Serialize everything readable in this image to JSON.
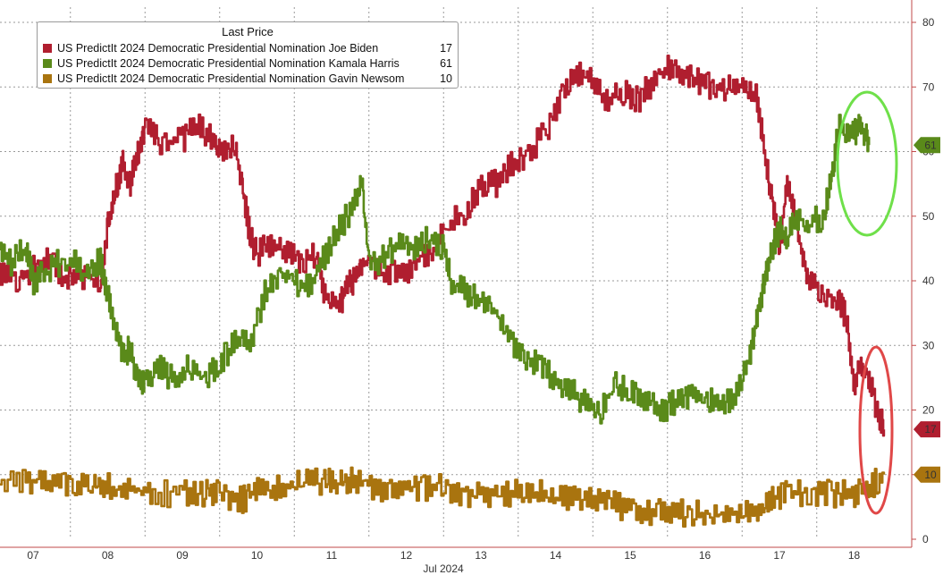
{
  "chart_data": {
    "type": "line",
    "legend_title": "Last Price",
    "xlabel": "Jul 2024",
    "x_categories": [
      "07",
      "08",
      "09",
      "10",
      "11",
      "12",
      "13",
      "14",
      "15",
      "16",
      "17",
      "18"
    ],
    "ylim": [
      0,
      80
    ],
    "y_ticks": [
      "0",
      "10",
      "20",
      "30",
      "40",
      "50",
      "60",
      "70",
      "80"
    ],
    "grid": true,
    "legend_position": "top-left",
    "series": [
      {
        "name": "US PredictIt 2024 Democratic Presidential Nomination Joe Biden",
        "last": "17",
        "color": "#b01e2f",
        "points": [
          [
            6.5,
            41
          ],
          [
            6.8,
            40
          ],
          [
            7.0,
            42
          ],
          [
            7.2,
            44
          ],
          [
            7.4,
            40
          ],
          [
            7.6,
            41
          ],
          [
            7.9,
            40
          ],
          [
            8.0,
            49
          ],
          [
            8.1,
            54
          ],
          [
            8.2,
            58
          ],
          [
            8.3,
            55
          ],
          [
            8.4,
            60
          ],
          [
            8.5,
            64
          ],
          [
            8.7,
            61
          ],
          [
            9.0,
            62
          ],
          [
            9.2,
            64
          ],
          [
            9.4,
            62
          ],
          [
            9.5,
            60
          ],
          [
            9.7,
            61
          ],
          [
            9.8,
            55
          ],
          [
            9.9,
            47
          ],
          [
            10.0,
            44
          ],
          [
            10.2,
            46
          ],
          [
            10.4,
            44
          ],
          [
            10.6,
            43
          ],
          [
            10.8,
            44
          ],
          [
            10.9,
            38
          ],
          [
            11.1,
            36
          ],
          [
            11.2,
            39
          ],
          [
            11.3,
            40
          ],
          [
            11.4,
            42
          ],
          [
            11.5,
            43
          ],
          [
            11.7,
            41
          ],
          [
            12.0,
            41
          ],
          [
            12.2,
            44
          ],
          [
            12.4,
            45
          ],
          [
            12.5,
            48
          ],
          [
            12.8,
            51
          ],
          [
            13.0,
            55
          ],
          [
            13.2,
            55
          ],
          [
            13.4,
            58
          ],
          [
            13.6,
            59
          ],
          [
            13.9,
            64
          ],
          [
            14.1,
            69
          ],
          [
            14.3,
            72
          ],
          [
            14.5,
            71
          ],
          [
            14.7,
            68
          ],
          [
            14.9,
            69
          ],
          [
            15.1,
            68
          ],
          [
            15.3,
            71
          ],
          [
            15.5,
            73
          ],
          [
            15.7,
            72
          ],
          [
            15.9,
            71
          ],
          [
            16.1,
            70
          ],
          [
            16.3,
            70
          ],
          [
            16.5,
            70
          ],
          [
            16.7,
            68
          ],
          [
            16.8,
            60
          ],
          [
            16.9,
            52
          ],
          [
            17.0,
            45
          ],
          [
            17.1,
            55
          ],
          [
            17.2,
            50
          ],
          [
            17.3,
            44
          ],
          [
            17.4,
            40
          ],
          [
            17.6,
            38
          ],
          [
            17.8,
            37
          ],
          [
            17.9,
            34
          ],
          [
            18.0,
            24
          ],
          [
            18.1,
            27
          ],
          [
            18.2,
            25
          ],
          [
            18.3,
            20
          ],
          [
            18.4,
            17
          ]
        ]
      },
      {
        "name": "US PredictIt 2024 Democratic Presidential Nomination Kamala Harris",
        "last": "61",
        "color": "#5a8a1a",
        "points": [
          [
            6.5,
            44
          ],
          [
            6.7,
            43
          ],
          [
            6.9,
            45
          ],
          [
            7.0,
            40
          ],
          [
            7.2,
            42
          ],
          [
            7.4,
            43
          ],
          [
            7.7,
            42
          ],
          [
            7.9,
            43
          ],
          [
            8.0,
            38
          ],
          [
            8.1,
            33
          ],
          [
            8.2,
            28
          ],
          [
            8.3,
            30
          ],
          [
            8.4,
            24
          ],
          [
            8.5,
            25
          ],
          [
            8.7,
            27
          ],
          [
            8.9,
            24
          ],
          [
            9.1,
            27
          ],
          [
            9.3,
            25
          ],
          [
            9.5,
            27
          ],
          [
            9.7,
            31
          ],
          [
            9.9,
            30
          ],
          [
            10.1,
            38
          ],
          [
            10.3,
            41
          ],
          [
            10.5,
            40
          ],
          [
            10.7,
            39
          ],
          [
            10.9,
            44
          ],
          [
            11.1,
            48
          ],
          [
            11.3,
            52
          ],
          [
            11.4,
            55
          ],
          [
            11.5,
            42
          ],
          [
            11.7,
            44
          ],
          [
            11.9,
            46
          ],
          [
            12.1,
            45
          ],
          [
            12.3,
            47
          ],
          [
            12.5,
            45
          ],
          [
            12.6,
            40
          ],
          [
            12.8,
            38
          ],
          [
            13.0,
            37
          ],
          [
            13.2,
            35
          ],
          [
            13.4,
            30
          ],
          [
            13.6,
            28
          ],
          [
            13.8,
            27
          ],
          [
            14.0,
            24
          ],
          [
            14.2,
            23
          ],
          [
            14.4,
            21
          ],
          [
            14.6,
            20
          ],
          [
            14.8,
            24
          ],
          [
            15.0,
            23
          ],
          [
            15.2,
            22
          ],
          [
            15.4,
            20
          ],
          [
            15.6,
            21
          ],
          [
            15.8,
            22
          ],
          [
            16.0,
            22
          ],
          [
            16.2,
            21
          ],
          [
            16.4,
            22
          ],
          [
            16.6,
            28
          ],
          [
            16.7,
            35
          ],
          [
            16.8,
            40
          ],
          [
            16.9,
            45
          ],
          [
            17.0,
            48
          ],
          [
            17.1,
            46
          ],
          [
            17.2,
            50
          ],
          [
            17.4,
            49
          ],
          [
            17.6,
            50
          ],
          [
            17.7,
            57
          ],
          [
            17.8,
            64
          ],
          [
            18.0,
            63
          ],
          [
            18.1,
            64
          ],
          [
            18.2,
            61
          ]
        ]
      },
      {
        "name": "US PredictIt 2024 Democratic Presidential Nomination Gavin Newsom",
        "last": "10",
        "color": "#a9740f",
        "points": [
          [
            6.5,
            9
          ],
          [
            6.9,
            9
          ],
          [
            7.2,
            9
          ],
          [
            7.5,
            8
          ],
          [
            7.8,
            9
          ],
          [
            8.0,
            8
          ],
          [
            8.3,
            8
          ],
          [
            8.6,
            7
          ],
          [
            9.0,
            7
          ],
          [
            9.3,
            7
          ],
          [
            9.5,
            7
          ],
          [
            9.8,
            6
          ],
          [
            10.0,
            8
          ],
          [
            10.3,
            8
          ],
          [
            10.6,
            9
          ],
          [
            10.9,
            9
          ],
          [
            11.1,
            9
          ],
          [
            11.3,
            9
          ],
          [
            11.6,
            8
          ],
          [
            11.9,
            8
          ],
          [
            12.2,
            8
          ],
          [
            12.5,
            8
          ],
          [
            12.8,
            7
          ],
          [
            13.1,
            7
          ],
          [
            13.4,
            7
          ],
          [
            13.7,
            7
          ],
          [
            14.0,
            7
          ],
          [
            14.3,
            6
          ],
          [
            14.6,
            6
          ],
          [
            14.9,
            5
          ],
          [
            15.2,
            4
          ],
          [
            15.5,
            4
          ],
          [
            15.8,
            4
          ],
          [
            16.1,
            4
          ],
          [
            16.4,
            4
          ],
          [
            16.7,
            5
          ],
          [
            16.9,
            6
          ],
          [
            17.1,
            7
          ],
          [
            17.4,
            7
          ],
          [
            17.7,
            7
          ],
          [
            18.0,
            7
          ],
          [
            18.2,
            8
          ],
          [
            18.4,
            10
          ]
        ]
      }
    ]
  }
}
